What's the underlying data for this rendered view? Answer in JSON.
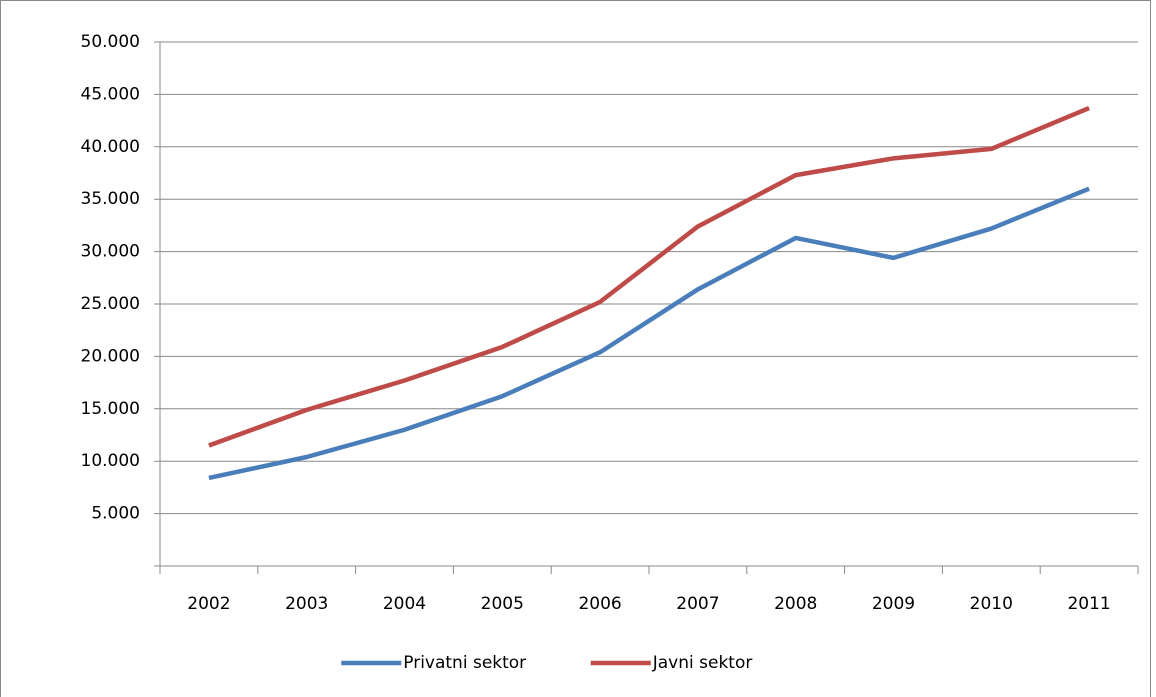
{
  "chart_data": {
    "type": "line",
    "categories": [
      "2002",
      "2003",
      "2004",
      "2005",
      "2006",
      "2007",
      "2008",
      "2009",
      "2010",
      "2011"
    ],
    "series": [
      {
        "name": "Privatni sektor",
        "color": "#4a7ebb",
        "values": [
          8400,
          10400,
          13000,
          16200,
          20400,
          26400,
          31300,
          29400,
          32200,
          36000
        ]
      },
      {
        "name": "Javni sektor",
        "color": "#be4b48",
        "values": [
          11500,
          14900,
          17700,
          20900,
          25200,
          32400,
          37300,
          38900,
          39800,
          43700
        ]
      }
    ],
    "ylim": [
      0,
      50000
    ],
    "yticks": [
      {
        "value": 5000,
        "label": "5.000"
      },
      {
        "value": 10000,
        "label": "10.000"
      },
      {
        "value": 15000,
        "label": "15.000"
      },
      {
        "value": 20000,
        "label": "20.000"
      },
      {
        "value": 25000,
        "label": "25.000"
      },
      {
        "value": 30000,
        "label": "30.000"
      },
      {
        "value": 35000,
        "label": "35.000"
      },
      {
        "value": 40000,
        "label": "40.000"
      },
      {
        "value": 45000,
        "label": "45.000"
      },
      {
        "value": 50000,
        "label": "50.000"
      }
    ],
    "grid": true,
    "legend": "bottom"
  }
}
